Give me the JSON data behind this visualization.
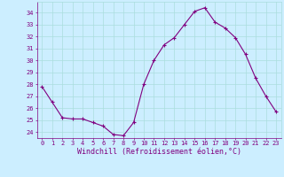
{
  "x": [
    0,
    1,
    2,
    3,
    4,
    5,
    6,
    7,
    8,
    9,
    10,
    11,
    12,
    13,
    14,
    15,
    16,
    17,
    18,
    19,
    20,
    21,
    22,
    23
  ],
  "y": [
    27.8,
    26.5,
    25.2,
    25.1,
    25.1,
    24.8,
    24.5,
    23.8,
    23.7,
    24.8,
    28.0,
    30.0,
    31.3,
    31.9,
    33.0,
    34.1,
    34.4,
    33.2,
    32.7,
    31.9,
    30.5,
    28.5,
    27.0,
    25.7
  ],
  "line_color": "#800080",
  "marker": "+",
  "marker_size": 3,
  "linewidth": 0.8,
  "markeredgewidth": 0.8,
  "xlabel": "Windchill (Refroidissement éolien,°C)",
  "xlim": [
    -0.5,
    23.5
  ],
  "ylim": [
    23.5,
    34.9
  ],
  "yticks": [
    24,
    25,
    26,
    27,
    28,
    29,
    30,
    31,
    32,
    33,
    34
  ],
  "xticks": [
    0,
    1,
    2,
    3,
    4,
    5,
    6,
    7,
    8,
    9,
    10,
    11,
    12,
    13,
    14,
    15,
    16,
    17,
    18,
    19,
    20,
    21,
    22,
    23
  ],
  "bg_color": "#cceeff",
  "grid_color": "#aadddd",
  "line_border_color": "#800080",
  "tick_color": "#800080",
  "label_color": "#800080",
  "tick_fontsize": 5,
  "xlabel_fontsize": 6,
  "font": "monospace"
}
